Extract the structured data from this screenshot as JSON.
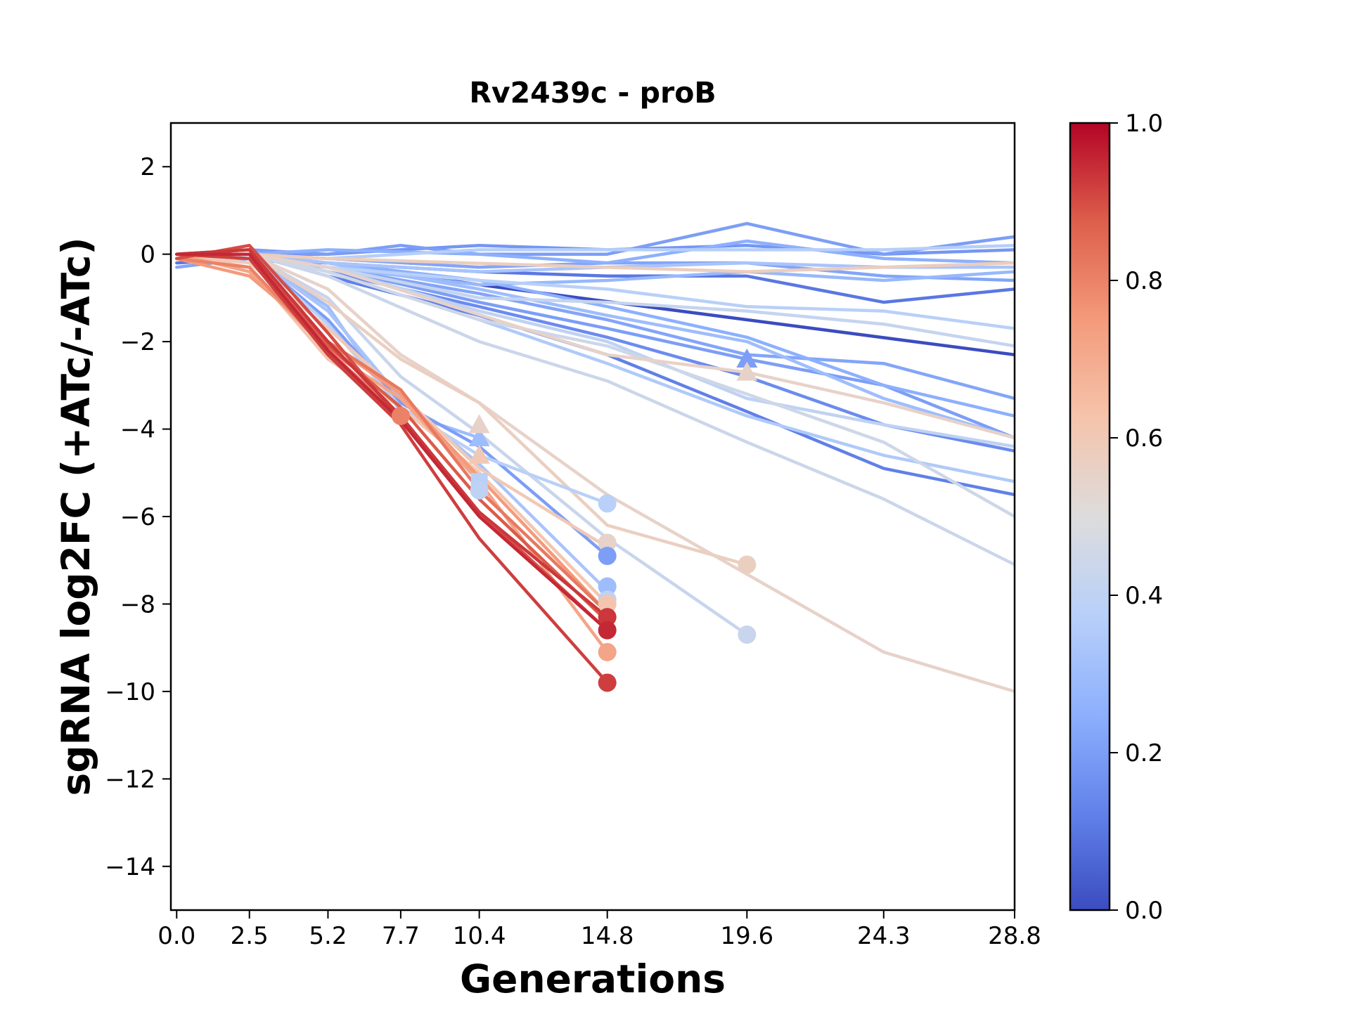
{
  "chart_data": {
    "type": "line",
    "title": "Rv2439c - proB",
    "xlabel": "Generations",
    "ylabel": "sgRNA log2FC (+ATc/-ATc)",
    "x_ticks": [
      0.0,
      2.5,
      5.2,
      7.7,
      10.4,
      14.8,
      19.6,
      24.3,
      28.8
    ],
    "x_tick_labels": [
      "0.0",
      "2.5",
      "5.2",
      "7.7",
      "10.4",
      "14.8",
      "19.6",
      "24.3",
      "28.8"
    ],
    "y_ticks": [
      2,
      0,
      -2,
      -4,
      -6,
      -8,
      -10,
      -12,
      -14
    ],
    "y_tick_labels": [
      "2",
      "0",
      "−2",
      "−4",
      "−6",
      "−8",
      "−10",
      "−12",
      "−14"
    ],
    "xlim": [
      -0.2,
      28.8
    ],
    "ylim": [
      -15,
      3
    ],
    "grid": false,
    "colorbar": {
      "colormap": "coolwarm",
      "range": [
        0.0,
        1.0
      ],
      "ticks": [
        0.0,
        0.2,
        0.4,
        0.6,
        0.8,
        1.0
      ],
      "tick_labels": [
        "0.0",
        "0.2",
        "0.4",
        "0.6",
        "0.8",
        "1.0"
      ],
      "colors": [
        "#3b4cc0",
        "#6282ea",
        "#8db0fe",
        "#b8d0f9",
        "#dddcdc",
        "#f5c4ac",
        "#f49a7b",
        "#dd5f4b",
        "#b40426"
      ]
    },
    "series": [
      {
        "c": 0.0,
        "x": [
          0,
          2.5,
          5.2,
          10.4,
          19.6,
          28.8
        ],
        "y": [
          -0.1,
          -0.1,
          -0.2,
          -0.7,
          -1.5,
          -2.3
        ]
      },
      {
        "c": 0.1,
        "x": [
          0,
          2.5,
          5.2,
          7.7,
          10.4,
          14.8,
          19.6,
          24.3,
          28.8
        ],
        "y": [
          -0.2,
          -0.1,
          -0.2,
          -0.3,
          -0.4,
          -0.5,
          -0.5,
          -1.1,
          -0.8
        ]
      },
      {
        "c": 0.12,
        "x": [
          0,
          2.5,
          5.2,
          10.4,
          14.8,
          19.6,
          24.3,
          28.8
        ],
        "y": [
          -0.1,
          0.0,
          -0.5,
          -1.4,
          -2.3,
          -3.6,
          -4.9,
          -5.5
        ]
      },
      {
        "c": 0.15,
        "x": [
          0,
          2.5,
          5.2,
          10.4,
          14.8,
          19.6,
          24.3,
          28.8
        ],
        "y": [
          0.0,
          0.0,
          -0.4,
          -1.2,
          -1.9,
          -2.8,
          -3.9,
          -4.5
        ]
      },
      {
        "c": 0.18,
        "x": [
          0,
          2.5,
          5.2,
          7.7,
          10.4,
          14.8,
          19.6,
          24.3,
          28.8
        ],
        "y": [
          0.0,
          0.0,
          0.0,
          0.1,
          0.2,
          0.1,
          0.2,
          0.0,
          0.1
        ]
      },
      {
        "c": 0.2,
        "x": [
          0,
          2.5,
          5.2,
          7.7,
          10.4,
          14.8,
          19.6,
          24.3,
          28.8
        ],
        "y": [
          0.0,
          0.1,
          0.0,
          0.2,
          0.0,
          0.0,
          0.7,
          0.0,
          0.4
        ]
      },
      {
        "c": 0.2,
        "x": [
          0,
          2.5,
          5.2,
          10.4,
          14.8,
          19.6,
          24.3,
          28.8
        ],
        "y": [
          0.0,
          0.0,
          -0.3,
          -1.1,
          -1.7,
          -2.4,
          -3.0,
          -4.2
        ]
      },
      {
        "c": 0.22,
        "x": [
          0,
          2.5,
          5.2,
          10.4,
          14.8,
          19.6,
          24.3,
          28.8
        ],
        "y": [
          -0.3,
          -0.1,
          -0.3,
          -0.9,
          -1.5,
          -2.3,
          -2.5,
          -3.3
        ]
      },
      {
        "c": 0.22,
        "x": [
          0,
          2.5,
          5.2,
          10.4,
          14.8,
          19.6,
          24.3,
          28.8
        ],
        "y": [
          0.0,
          0.0,
          -0.1,
          -0.3,
          -0.2,
          -0.2,
          -0.5,
          -0.6
        ]
      },
      {
        "c": 0.25,
        "x": [
          0,
          2.5,
          5.2,
          10.4,
          14.8,
          19.6,
          24.3,
          28.8
        ],
        "y": [
          0.0,
          0.0,
          -0.2,
          -0.6,
          -1.2,
          -1.9,
          -3.0,
          -3.7
        ]
      },
      {
        "c": 0.25,
        "x": [
          0,
          2.5,
          5.2,
          10.4,
          14.8,
          19.6,
          24.3,
          28.8
        ],
        "y": [
          0.0,
          0.0,
          0.1,
          0.0,
          -0.2,
          0.3,
          -0.1,
          -0.2
        ]
      },
      {
        "c": 0.28,
        "x": [
          0,
          2.5,
          5.2,
          10.4,
          14.8,
          19.6,
          24.3,
          28.8
        ],
        "y": [
          -0.1,
          0.0,
          -0.3,
          -0.7,
          -0.6,
          -0.4,
          -0.6,
          -0.4
        ]
      },
      {
        "c": 0.3,
        "x": [
          0,
          2.5,
          5.2,
          10.4,
          14.8,
          19.6,
          24.3,
          28.8
        ],
        "y": [
          0.0,
          0.0,
          -0.2,
          -0.8,
          -1.4,
          -2.0,
          -3.3,
          -4.2
        ]
      },
      {
        "c": 0.33,
        "x": [
          0,
          2.5,
          5.2,
          10.4,
          14.8,
          19.6,
          24.3,
          28.8
        ],
        "y": [
          0.0,
          0.0,
          -0.2,
          -0.4,
          -0.3,
          -0.2,
          -0.3,
          -0.3
        ]
      },
      {
        "c": 0.35,
        "x": [
          0,
          2.5,
          5.2,
          10.4,
          14.8,
          19.6,
          24.3,
          28.8
        ],
        "y": [
          0.0,
          0.0,
          -0.4,
          -1.5,
          -2.5,
          -3.7,
          -4.6,
          -5.2
        ]
      },
      {
        "c": 0.37,
        "x": [
          0,
          2.5,
          5.2,
          10.4,
          14.8,
          19.6,
          24.3,
          28.8
        ],
        "y": [
          0.0,
          0.0,
          -0.1,
          0.1,
          0.1,
          0.1,
          0.1,
          0.2
        ]
      },
      {
        "c": 0.38,
        "x": [
          0,
          2.5,
          5.2,
          10.4,
          14.8,
          19.6,
          24.3,
          28.8
        ],
        "y": [
          0.0,
          0.0,
          -0.3,
          -0.6,
          -0.8,
          -1.2,
          -1.3,
          -1.7
        ]
      },
      {
        "c": 0.4,
        "x": [
          0,
          2.5,
          5.2,
          10.4,
          14.8,
          19.6,
          24.3,
          28.8
        ],
        "y": [
          0.0,
          0.0,
          -0.3,
          -1.3,
          -2.0,
          -3.3,
          -3.9,
          -4.4
        ]
      },
      {
        "c": 0.42,
        "x": [
          0,
          2.5,
          5.2,
          10.4,
          14.8,
          19.6,
          24.3,
          28.8
        ],
        "y": [
          -0.1,
          0.0,
          -0.3,
          -1.0,
          -1.1,
          -1.3,
          -1.6,
          -2.1
        ]
      },
      {
        "c": 0.44,
        "x": [
          0,
          2.5,
          5.2,
          10.4,
          14.8,
          19.6,
          24.3,
          28.8
        ],
        "y": [
          0.0,
          0.0,
          -0.5,
          -2.0,
          -2.9,
          -4.3,
          -5.6,
          -7.1
        ]
      },
      {
        "c": 0.45,
        "x": [
          0,
          2.5,
          5.2,
          10.4,
          14.8,
          19.6,
          24.3,
          28.8
        ],
        "y": [
          0.0,
          0.0,
          -0.4,
          -1.5,
          -2.1,
          -3.2,
          -4.3,
          -6.0
        ]
      },
      {
        "c": 0.3,
        "x": [
          0,
          2.5,
          5.2,
          7.7,
          10.4
        ],
        "y": [
          0.0,
          0.0,
          -1.2,
          -3.6,
          -4.2
        ]
      },
      {
        "c": 0.43,
        "x": [
          0,
          2.5,
          5.2,
          7.7,
          10.4,
          14.8,
          19.6
        ],
        "y": [
          0.0,
          0.0,
          -1.0,
          -2.8,
          -4.1,
          -6.5,
          -8.7
        ]
      },
      {
        "c": 0.55,
        "x": [
          0,
          2.5,
          5.2,
          7.7,
          10.4,
          14.8,
          24.3,
          28.8
        ],
        "y": [
          0.0,
          0.0,
          -0.8,
          -2.3,
          -3.4,
          -5.5,
          -9.1,
          -10.0
        ]
      },
      {
        "c": 0.57,
        "x": [
          0,
          2.5,
          5.2,
          7.7,
          10.4,
          14.8,
          19.6
        ],
        "y": [
          0.0,
          0.0,
          -1.1,
          -2.4,
          -3.4,
          -6.2,
          -7.1
        ]
      },
      {
        "c": 0.58,
        "x": [
          0,
          2.5,
          5.2,
          19.6,
          28.8
        ],
        "y": [
          0.0,
          0.0,
          -0.1,
          -0.4,
          -0.2
        ]
      },
      {
        "c": 0.55,
        "x": [
          0,
          2.5,
          5.2,
          14.8,
          19.6,
          24.3,
          28.8
        ],
        "y": [
          0.0,
          0.0,
          -0.3,
          -2.3,
          -2.7,
          -3.4,
          -4.2
        ]
      },
      {
        "c": 0.2,
        "x": [
          0,
          2.5,
          5.2,
          7.7,
          10.4,
          14.8
        ],
        "y": [
          0.0,
          0.0,
          -1.5,
          -3.4,
          -4.4,
          -6.9
        ]
      },
      {
        "c": 0.33,
        "x": [
          0,
          2.5,
          5.2,
          7.7,
          10.4,
          14.8
        ],
        "y": [
          0.0,
          0.0,
          -1.3,
          -3.3,
          -4.8,
          -7.7
        ]
      },
      {
        "c": 0.38,
        "x": [
          0,
          2.5,
          5.2,
          7.7,
          10.4,
          14.8
        ],
        "y": [
          0.0,
          0.0,
          -1.6,
          -3.5,
          -4.6,
          -5.7
        ]
      },
      {
        "c": 0.6,
        "x": [
          0,
          2.5,
          5.2,
          7.7,
          10.4,
          14.8
        ],
        "y": [
          0.0,
          -0.2,
          -1.7,
          -3.2,
          -4.9,
          -6.7
        ]
      },
      {
        "c": 0.62,
        "x": [
          0,
          2.5,
          5.2,
          7.7,
          10.4,
          14.8
        ],
        "y": [
          0.0,
          -0.3,
          -2.4,
          -3.5,
          -5.0,
          -8.0
        ]
      },
      {
        "c": 0.72,
        "x": [
          0,
          2.5,
          5.2,
          7.7,
          10.4,
          14.8
        ],
        "y": [
          0.0,
          -0.4,
          -2.2,
          -3.3,
          -5.2,
          -9.1
        ]
      },
      {
        "c": 0.75,
        "x": [
          0,
          2.5,
          5.2,
          7.7,
          10.4,
          14.8
        ],
        "y": [
          -0.1,
          -0.5,
          -2.0,
          -3.2,
          -5.1,
          -8.2
        ]
      },
      {
        "c": 0.8,
        "x": [
          0,
          2.5,
          5.2,
          7.7
        ],
        "y": [
          -0.1,
          -0.3,
          -2.2,
          -3.7
        ]
      },
      {
        "c": 0.82,
        "x": [
          0,
          2.5,
          5.2,
          7.7,
          10.4,
          14.8
        ],
        "y": [
          0.0,
          -0.1,
          -2.0,
          -3.1,
          -5.4,
          -8.2
        ]
      },
      {
        "c": 0.88,
        "x": [
          0,
          2.5,
          5.2,
          7.7,
          10.4,
          14.8
        ],
        "y": [
          0.0,
          0.1,
          -2.1,
          -3.5,
          -5.6,
          -8.4
        ]
      },
      {
        "c": 0.9,
        "x": [
          0,
          2.5,
          5.2,
          7.7,
          10.4,
          14.8
        ],
        "y": [
          -0.1,
          0.2,
          -1.8,
          -3.8,
          -5.9,
          -8.6
        ]
      },
      {
        "c": 0.92,
        "x": [
          0,
          2.5,
          5.2,
          7.7,
          10.4,
          14.8
        ],
        "y": [
          0.0,
          -0.1,
          -2.3,
          -3.9,
          -6.5,
          -9.8
        ]
      },
      {
        "c": 0.93,
        "x": [
          0,
          2.5,
          5.2,
          7.7,
          10.4,
          14.8
        ],
        "y": [
          0.0,
          0.1,
          -2.0,
          -3.7,
          -5.9,
          -8.3
        ]
      },
      {
        "c": 0.95,
        "x": [
          0,
          2.5,
          5.2,
          7.7,
          10.4,
          14.8
        ],
        "y": [
          0.0,
          0.0,
          -2.2,
          -3.8,
          -6.0,
          -8.6
        ]
      }
    ],
    "end_markers": [
      {
        "shape": "circle",
        "c": 0.8,
        "x": 7.7,
        "y": -3.7
      },
      {
        "shape": "triangle",
        "c": 0.3,
        "x": 10.4,
        "y": -4.2
      },
      {
        "shape": "triangle",
        "c": 0.55,
        "x": 10.4,
        "y": -3.9
      },
      {
        "shape": "triangle",
        "c": 0.6,
        "x": 10.4,
        "y": -4.6
      },
      {
        "shape": "square",
        "c": 0.38,
        "x": 10.4,
        "y": -5.2
      },
      {
        "shape": "circle",
        "c": 0.4,
        "x": 10.4,
        "y": -5.4
      },
      {
        "shape": "circle",
        "c": 0.38,
        "x": 14.8,
        "y": -5.7
      },
      {
        "shape": "circle",
        "c": 0.55,
        "x": 14.8,
        "y": -6.6
      },
      {
        "shape": "circle",
        "c": 0.2,
        "x": 14.8,
        "y": -6.9
      },
      {
        "shape": "circle",
        "c": 0.3,
        "x": 14.8,
        "y": -7.6
      },
      {
        "shape": "circle",
        "c": 0.4,
        "x": 14.8,
        "y": -7.9
      },
      {
        "shape": "circle",
        "c": 0.62,
        "x": 14.8,
        "y": -8.0
      },
      {
        "shape": "circle",
        "c": 0.93,
        "x": 14.8,
        "y": -8.3
      },
      {
        "shape": "circle",
        "c": 0.95,
        "x": 14.8,
        "y": -8.6
      },
      {
        "shape": "circle",
        "c": 0.72,
        "x": 14.8,
        "y": -9.1
      },
      {
        "shape": "circle",
        "c": 0.92,
        "x": 14.8,
        "y": -9.8
      },
      {
        "shape": "triangle",
        "c": 0.2,
        "x": 19.6,
        "y": -2.4
      },
      {
        "shape": "triangle",
        "c": 0.55,
        "x": 19.6,
        "y": -2.7
      },
      {
        "shape": "circle",
        "c": 0.57,
        "x": 19.6,
        "y": -7.1
      },
      {
        "shape": "circle",
        "c": 0.43,
        "x": 19.6,
        "y": -8.7
      }
    ]
  }
}
